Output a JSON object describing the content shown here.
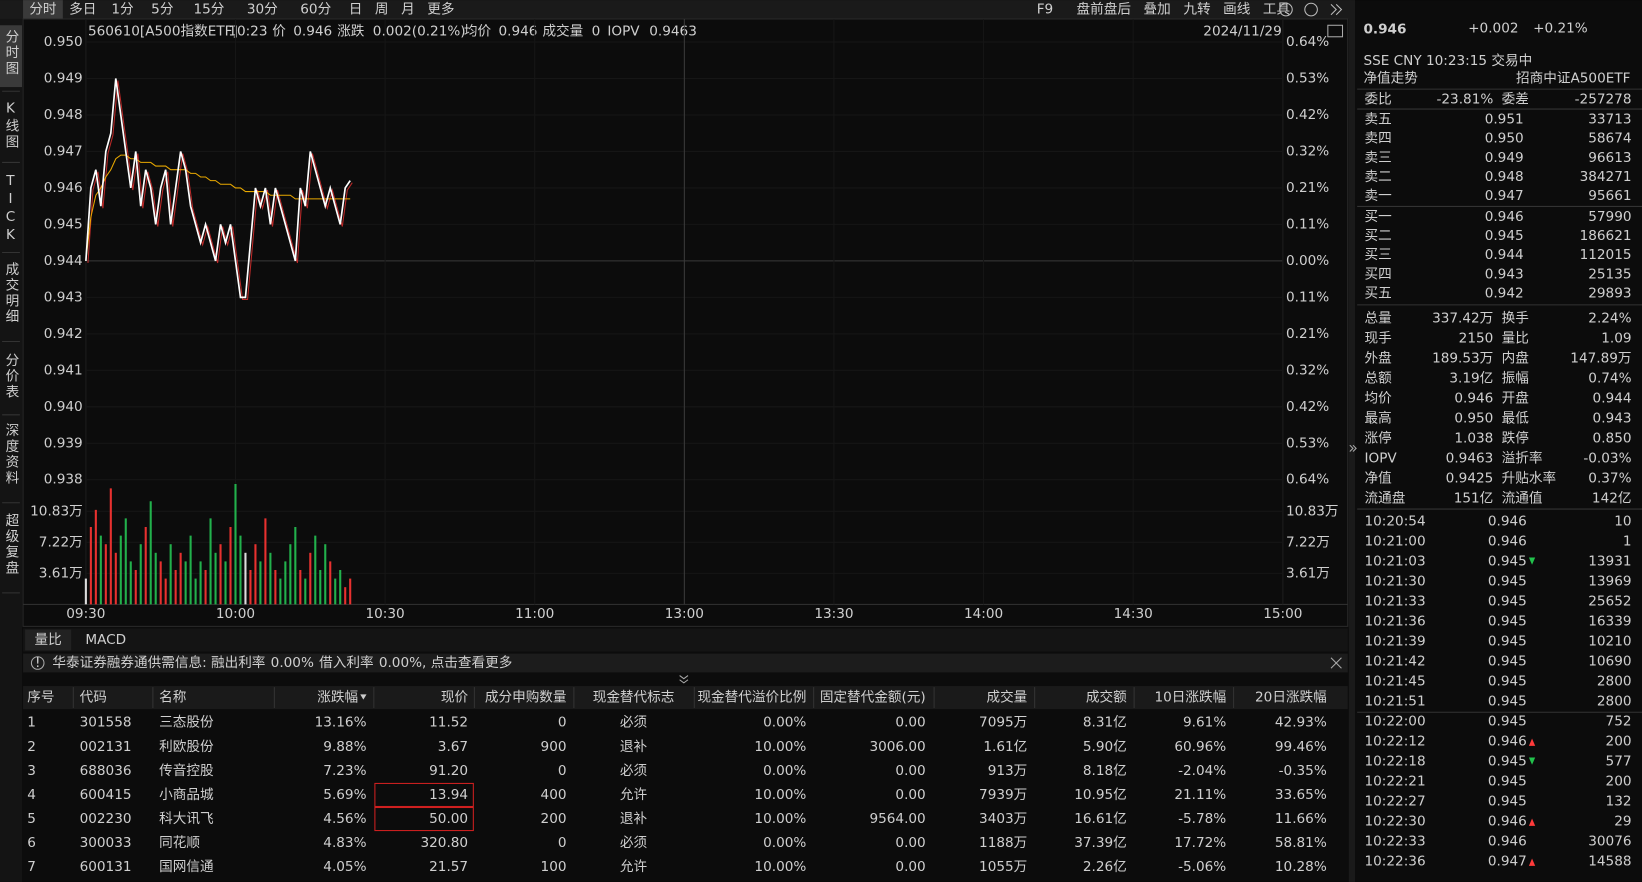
{
  "toolbar": {
    "tabs": [
      "分时",
      "多日",
      "1分",
      "5分",
      "15分",
      "30分",
      "60分",
      "日",
      "周",
      "月",
      "更多"
    ],
    "tools": [
      "F9",
      "盘前盘后",
      "叠加",
      "九转",
      "画线",
      "工具"
    ]
  },
  "side_tabs": [
    "分时图",
    "K线图",
    "TICK",
    "成交明细",
    "分价表",
    "深度资料",
    "超级复盘"
  ],
  "info": {
    "code": "560610[A500指数ETF]",
    "time": "10:23",
    "price_label": "价",
    "price": "0.946",
    "change_label": "涨跌",
    "change": "0.002(0.21%)",
    "avg_label": "均价",
    "avg": "0.946",
    "vol_label": "成交量",
    "vol": "0",
    "iopv_label": "IOPV",
    "iopv": "0.9463",
    "date": "2024/11/29"
  },
  "chart": {
    "ylim": [
      0.938,
      0.95
    ],
    "yticks": [
      {
        "value": 0.95,
        "label": "0.950"
      },
      {
        "value": 0.949,
        "label": "0.949"
      },
      {
        "value": 0.948,
        "label": "0.948"
      },
      {
        "value": 0.947,
        "label": "0.947"
      },
      {
        "value": 0.946,
        "label": "0.946"
      },
      {
        "value": 0.945,
        "label": "0.945"
      },
      {
        "value": 0.944,
        "label": "0.944"
      },
      {
        "value": 0.943,
        "label": "0.943"
      },
      {
        "value": 0.942,
        "label": "0.942"
      },
      {
        "value": 0.941,
        "label": "0.941"
      },
      {
        "value": 0.94,
        "label": "0.940"
      },
      {
        "value": 0.939,
        "label": "0.939"
      },
      {
        "value": 0.938,
        "label": "0.938"
      }
    ],
    "pct_labels": [
      "0.64%",
      "0.53%",
      "0.42%",
      "0.32%",
      "0.21%",
      "0.11%",
      "0.00%",
      "0.11%",
      "0.21%",
      "0.32%",
      "0.42%",
      "0.53%",
      "0.64%"
    ],
    "vol_ylim": [
      0,
      14.5
    ],
    "vol_ticks": [
      {
        "value": 10.83,
        "label": "10.83万"
      },
      {
        "value": 7.22,
        "label": "7.22万"
      },
      {
        "value": 3.61,
        "label": "3.61万"
      }
    ],
    "xticks": [
      "09:30",
      "10:00",
      "10:30",
      "11:00",
      "13:00",
      "13:30",
      "14:00",
      "14:30",
      "15:00"
    ],
    "price": [
      0.944,
      0.946,
      0.9465,
      0.9455,
      0.947,
      0.9475,
      0.949,
      0.948,
      0.947,
      0.946,
      0.947,
      0.9455,
      0.9465,
      0.946,
      0.945,
      0.946,
      0.9465,
      0.945,
      0.946,
      0.947,
      0.9465,
      0.9455,
      0.945,
      0.9445,
      0.945,
      0.9445,
      0.944,
      0.945,
      0.9445,
      0.945,
      0.944,
      0.943,
      0.943,
      0.9445,
      0.946,
      0.9455,
      0.946,
      0.945,
      0.946,
      0.9455,
      0.945,
      0.9445,
      0.944,
      0.946,
      0.9455,
      0.947,
      0.9465,
      0.946,
      0.9455,
      0.946,
      0.9455,
      0.945,
      0.946,
      0.9462
    ],
    "avg": [
      0.944,
      0.9452,
      0.9458,
      0.946,
      0.9463,
      0.9465,
      0.9468,
      0.9469,
      0.9469,
      0.9468,
      0.9468,
      0.9467,
      0.9467,
      0.9467,
      0.9466,
      0.9466,
      0.9466,
      0.9465,
      0.9465,
      0.9465,
      0.9465,
      0.9464,
      0.9464,
      0.9463,
      0.9463,
      0.9462,
      0.9462,
      0.9461,
      0.9461,
      0.9461,
      0.946,
      0.946,
      0.9459,
      0.9459,
      0.9459,
      0.9459,
      0.9459,
      0.9458,
      0.9458,
      0.9458,
      0.9458,
      0.9458,
      0.9457,
      0.9457,
      0.9457,
      0.9457,
      0.9457,
      0.9457,
      0.9457,
      0.9457,
      0.9457,
      0.9457,
      0.9457,
      0.9457
    ],
    "volume": [
      3,
      9,
      11,
      8,
      7,
      13.5,
      6,
      8,
      10,
      5,
      4,
      7,
      9,
      12,
      6,
      5,
      3,
      7,
      4,
      6,
      5,
      8,
      3,
      5,
      4,
      10,
      6,
      7,
      5,
      9,
      14,
      8,
      6,
      4,
      7,
      5,
      10,
      6,
      4,
      3,
      5,
      7,
      9,
      4,
      3,
      6,
      8,
      4,
      7,
      5,
      3,
      4,
      2,
      3
    ],
    "price_color": "#ffffff",
    "avg_color": "#e8a800",
    "up_color": "#e8312f",
    "down_color": "#22b14c",
    "flat_color": "#dddddd"
  },
  "sub_tabs": [
    "量比",
    "MACD"
  ],
  "notice": {
    "text1": "华泰证券融券通供需信息: 融出利率",
    "rate1": "0.00%",
    "text2": "借入利率",
    "rate2": "0.00%",
    "text3": ", 点击查看更多"
  },
  "table": {
    "headers": [
      "序号",
      "代码",
      "名称",
      "涨跌幅",
      "现价",
      "成分申购数量",
      "现金替代标志",
      "现金替代溢价比例",
      "固定替代金额(元)",
      "成交量",
      "成交额",
      "10日涨跌幅",
      "20日涨跌幅"
    ],
    "rows": [
      [
        "1",
        "301558",
        "三态股份",
        "13.16%",
        "11.52",
        "0",
        "必须",
        "0.00%",
        "0.00",
        "7095万",
        "8.31亿",
        "9.61%",
        "42.93%"
      ],
      [
        "2",
        "002131",
        "利欧股份",
        "9.88%",
        "3.67",
        "900",
        "退补",
        "10.00%",
        "3006.00",
        "1.61亿",
        "5.90亿",
        "60.96%",
        "99.46%"
      ],
      [
        "3",
        "688036",
        "传音控股",
        "7.23%",
        "91.20",
        "0",
        "必须",
        "0.00%",
        "0.00",
        "913万",
        "8.18亿",
        "-2.04%",
        "-0.35%"
      ],
      [
        "4",
        "600415",
        "小商品城",
        "5.69%",
        "13.94",
        "400",
        "允许",
        "10.00%",
        "0.00",
        "7939万",
        "10.95亿",
        "21.11%",
        "33.65%"
      ],
      [
        "5",
        "002230",
        "科大讯飞",
        "4.56%",
        "50.00",
        "200",
        "退补",
        "10.00%",
        "9564.00",
        "3403万",
        "16.61亿",
        "-5.78%",
        "11.66%"
      ],
      [
        "6",
        "300033",
        "同花顺",
        "4.83%",
        "320.80",
        "0",
        "必须",
        "0.00%",
        "0.00",
        "1188万",
        "37.39亿",
        "17.72%",
        "58.81%"
      ],
      [
        "7",
        "600131",
        "国网信通",
        "4.05%",
        "21.57",
        "100",
        "允许",
        "10.00%",
        "0.00",
        "1055万",
        "2.26亿",
        "-5.06%",
        "10.28%"
      ]
    ]
  },
  "quote": {
    "price": "0.946",
    "change": "+0.002",
    "change_pct": "+0.21%",
    "meta": "SSE  CNY  10:23:15  交易中",
    "nav_label": "净值走势",
    "name": "招商中证A500ETF",
    "ratio_label": "委比",
    "ratio": "-23.81%",
    "diff_label": "委差",
    "diff": "-257278"
  },
  "order_book": [
    {
      "label": "卖五",
      "price": "0.951",
      "vol": "33713",
      "color": "#ff3b3b"
    },
    {
      "label": "卖四",
      "price": "0.950",
      "vol": "58674",
      "color": "#ff3b3b"
    },
    {
      "label": "卖三",
      "price": "0.949",
      "vol": "96613",
      "color": "#ff3b3b"
    },
    {
      "label": "卖二",
      "price": "0.948",
      "vol": "384271",
      "color": "#ff3b3b"
    },
    {
      "label": "卖一",
      "price": "0.947",
      "vol": "95661",
      "color": "#ff3b3b"
    },
    {
      "label": "买一",
      "price": "0.946",
      "vol": "57990",
      "color": "#ff3b3b"
    },
    {
      "label": "买二",
      "price": "0.945",
      "vol": "186621",
      "color": "#ff3b3b"
    },
    {
      "label": "买三",
      "price": "0.944",
      "vol": "112015",
      "color": "#dddddd"
    },
    {
      "label": "买四",
      "price": "0.943",
      "vol": "25135",
      "color": "#22c24c"
    },
    {
      "label": "买五",
      "price": "0.942",
      "vol": "29893",
      "color": "#22c24c"
    }
  ],
  "stats": [
    {
      "l1": "总量",
      "v1": "337.42万",
      "c1": "#dddddd",
      "l2": "换手",
      "v2": "2.24%",
      "c2": "#dddddd"
    },
    {
      "l1": "现手",
      "v1": "2150",
      "c1": "#dddddd",
      "l2": "量比",
      "v2": "1.09",
      "c2": "#dddddd"
    },
    {
      "l1": "外盘",
      "v1": "189.53万",
      "c1": "#ff3b3b",
      "l2": "内盘",
      "v2": "147.89万",
      "c2": "#22c24c"
    },
    {
      "l1": "总额",
      "v1": "3.19亿",
      "c1": "#dddddd",
      "l2": "振幅",
      "v2": "0.74%",
      "c2": "#dddddd"
    },
    {
      "l1": "均价",
      "v1": "0.946",
      "c1": "#ff3b3b",
      "l2": "开盘",
      "v2": "0.944",
      "c2": "#dddddd"
    },
    {
      "l1": "最高",
      "v1": "0.950",
      "c1": "#ff3b3b",
      "l2": "最低",
      "v2": "0.943",
      "c2": "#22c24c"
    },
    {
      "l1": "涨停",
      "v1": "1.038",
      "c1": "#ff3b3b",
      "l2": "跌停",
      "v2": "0.850",
      "c2": "#22c24c"
    },
    {
      "l1": "IOPV",
      "v1": "0.9463",
      "c1": "#dddddd",
      "l2": "溢折率",
      "v2": "-0.03%",
      "c2": "#22c24c"
    },
    {
      "l1": "净值",
      "v1": "0.9425",
      "c1": "#22c24c",
      "l2": "升贴水率",
      "v2": "0.37%",
      "c2": "#ff3b3b"
    },
    {
      "l1": "流通盘",
      "v1": "151亿",
      "c1": "#dddddd",
      "l2": "流通值",
      "v2": "142亿",
      "c2": "#dddddd"
    }
  ],
  "ticks": [
    {
      "time": "10:20:54",
      "price": "0.946",
      "vol": "10",
      "pc": "#ff3b3b",
      "vc": "#ff3b3b",
      "dir": ""
    },
    {
      "time": "10:21:00",
      "price": "0.946",
      "vol": "1",
      "pc": "#ff3b3b",
      "vc": "#ff3b3b",
      "dir": ""
    },
    {
      "time": "10:21:03",
      "price": "0.945",
      "vol": "13931",
      "pc": "#ff3b3b",
      "vc": "#22c24c",
      "dir": "down"
    },
    {
      "time": "10:21:30",
      "price": "0.945",
      "vol": "13969",
      "pc": "#ff3b3b",
      "vc": "#ff3b3b",
      "dir": ""
    },
    {
      "time": "10:21:33",
      "price": "0.945",
      "vol": "25652",
      "pc": "#ff3b3b",
      "vc": "#22c24c",
      "dir": ""
    },
    {
      "time": "10:21:36",
      "price": "0.945",
      "vol": "16339",
      "pc": "#ff3b3b",
      "vc": "#22c24c",
      "dir": ""
    },
    {
      "time": "10:21:39",
      "price": "0.945",
      "vol": "10210",
      "pc": "#ff3b3b",
      "vc": "#22c24c",
      "dir": ""
    },
    {
      "time": "10:21:42",
      "price": "0.945",
      "vol": "10690",
      "pc": "#ff3b3b",
      "vc": "#ff3b3b",
      "dir": ""
    },
    {
      "time": "10:21:45",
      "price": "0.945",
      "vol": "2800",
      "pc": "#ff3b3b",
      "vc": "#22c24c",
      "dir": ""
    },
    {
      "time": "10:21:51",
      "price": "0.945",
      "vol": "2800",
      "pc": "#ff3b3b",
      "vc": "#22c24c",
      "dir": ""
    },
    {
      "time": "10:22:00",
      "price": "0.945",
      "vol": "752",
      "pc": "#ff3b3b",
      "vc": "#ff3b3b",
      "dir": ""
    },
    {
      "time": "10:22:12",
      "price": "0.946",
      "vol": "200",
      "pc": "#ff3b3b",
      "vc": "#ff3b3b",
      "dir": "up"
    },
    {
      "time": "10:22:18",
      "price": "0.945",
      "vol": "577",
      "pc": "#ff3b3b",
      "vc": "#22c24c",
      "dir": "down"
    },
    {
      "time": "10:22:21",
      "price": "0.945",
      "vol": "200",
      "pc": "#ff3b3b",
      "vc": "#22c24c",
      "dir": ""
    },
    {
      "time": "10:22:27",
      "price": "0.945",
      "vol": "132",
      "pc": "#ff3b3b",
      "vc": "#22c24c",
      "dir": ""
    },
    {
      "time": "10:22:30",
      "price": "0.946",
      "vol": "29",
      "pc": "#ff3b3b",
      "vc": "#ff3b3b",
      "dir": "up"
    },
    {
      "time": "10:22:33",
      "price": "0.946",
      "vol": "30076",
      "pc": "#ff3b3b",
      "vc": "#ff3b3b",
      "dir": ""
    },
    {
      "time": "10:22:36",
      "price": "0.947",
      "vol": "14588",
      "pc": "#ff3b3b",
      "vc": "#ff3b3b",
      "dir": "up"
    }
  ]
}
